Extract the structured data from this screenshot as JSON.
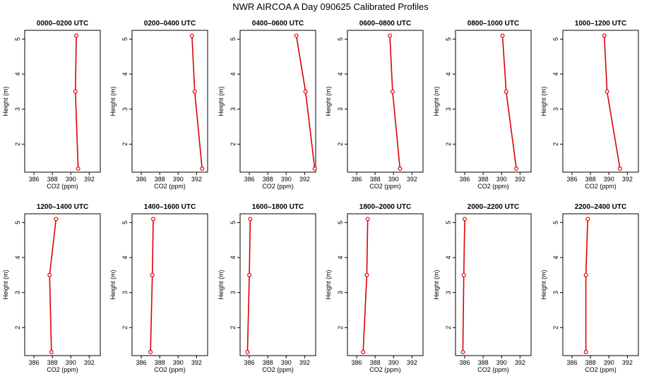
{
  "figure_title": "NWR AIRCOA A  Day 090625  Calibrated Profiles",
  "colors": {
    "profile": "#e00000",
    "axes": "#000000",
    "background": "#ffffff"
  },
  "chart_data": [
    {
      "type": "line",
      "title": "0000–0200 UTC",
      "xlabel": "CO2 (ppm)",
      "ylabel": "Height (m)",
      "xlim": [
        385,
        393.2
      ],
      "ylim": [
        1.2,
        5.25
      ],
      "xticks": [
        386,
        388,
        390,
        392
      ],
      "yticks": [
        2,
        3,
        4,
        5
      ],
      "x": [
        390.8,
        390.5,
        390.6
      ],
      "y": [
        1.3,
        3.5,
        5.1
      ]
    },
    {
      "type": "line",
      "title": "0200–0400 UTC",
      "xlabel": "CO2 (ppm)",
      "ylabel": "Height (m)",
      "xlim": [
        385,
        393.2
      ],
      "ylim": [
        1.2,
        5.25
      ],
      "xticks": [
        386,
        388,
        390,
        392
      ],
      "yticks": [
        2,
        3,
        4,
        5
      ],
      "x": [
        392.6,
        391.8,
        391.5
      ],
      "y": [
        1.3,
        3.5,
        5.1
      ]
    },
    {
      "type": "line",
      "title": "0400–0600 UTC",
      "xlabel": "CO2 (ppm)",
      "ylabel": "Height (m)",
      "xlim": [
        385,
        393.2
      ],
      "ylim": [
        1.2,
        5.25
      ],
      "xticks": [
        386,
        388,
        390,
        392
      ],
      "yticks": [
        2,
        3,
        4,
        5
      ],
      "x": [
        393.1,
        392.1,
        391.1
      ],
      "y": [
        1.3,
        3.5,
        5.1
      ]
    },
    {
      "type": "line",
      "title": "0600–0800 UTC",
      "xlabel": "CO2 (ppm)",
      "ylabel": "Height (m)",
      "xlim": [
        385,
        393.2
      ],
      "ylim": [
        1.2,
        5.25
      ],
      "xticks": [
        386,
        388,
        390,
        392
      ],
      "yticks": [
        2,
        3,
        4,
        5
      ],
      "x": [
        390.7,
        389.9,
        389.6
      ],
      "y": [
        1.3,
        3.5,
        5.1
      ]
    },
    {
      "type": "line",
      "title": "0800–1000 UTC",
      "xlabel": "CO2 (ppm)",
      "ylabel": "Height (m)",
      "xlim": [
        385,
        393.2
      ],
      "ylim": [
        1.2,
        5.25
      ],
      "xticks": [
        386,
        388,
        390,
        392
      ],
      "yticks": [
        2,
        3,
        4,
        5
      ],
      "x": [
        391.6,
        390.5,
        390.1
      ],
      "y": [
        1.3,
        3.5,
        5.1
      ]
    },
    {
      "type": "line",
      "title": "1000–1200 UTC",
      "xlabel": "CO2 (ppm)",
      "ylabel": "Height (m)",
      "xlim": [
        385,
        393.2
      ],
      "ylim": [
        1.2,
        5.25
      ],
      "xticks": [
        386,
        388,
        390,
        392
      ],
      "yticks": [
        2,
        3,
        4,
        5
      ],
      "x": [
        391.2,
        389.8,
        389.5
      ],
      "y": [
        1.3,
        3.5,
        5.1
      ]
    },
    {
      "type": "line",
      "title": "1200–1400 UTC",
      "xlabel": "CO2 (ppm)",
      "ylabel": "Height (m)",
      "xlim": [
        385,
        393.2
      ],
      "ylim": [
        1.2,
        5.25
      ],
      "xticks": [
        386,
        388,
        390,
        392
      ],
      "yticks": [
        2,
        3,
        4,
        5
      ],
      "x": [
        387.9,
        387.7,
        388.4
      ],
      "y": [
        1.3,
        3.5,
        5.1
      ]
    },
    {
      "type": "line",
      "title": "1400–1600 UTC",
      "xlabel": "CO2 (ppm)",
      "ylabel": "Height (m)",
      "xlim": [
        385,
        393.2
      ],
      "ylim": [
        1.2,
        5.25
      ],
      "xticks": [
        386,
        388,
        390,
        392
      ],
      "yticks": [
        2,
        3,
        4,
        5
      ],
      "x": [
        387.0,
        387.2,
        387.3
      ],
      "y": [
        1.3,
        3.5,
        5.1
      ]
    },
    {
      "type": "line",
      "title": "1600–1800 UTC",
      "xlabel": "CO2 (ppm)",
      "ylabel": "Height (m)",
      "xlim": [
        385,
        393.2
      ],
      "ylim": [
        1.2,
        5.25
      ],
      "xticks": [
        386,
        388,
        390,
        392
      ],
      "yticks": [
        2,
        3,
        4,
        5
      ],
      "x": [
        385.8,
        386.0,
        386.1
      ],
      "y": [
        1.3,
        3.5,
        5.1
      ]
    },
    {
      "type": "line",
      "title": "1800–2000 UTC",
      "xlabel": "CO2 (ppm)",
      "ylabel": "Height (m)",
      "xlim": [
        385,
        393.2
      ],
      "ylim": [
        1.2,
        5.25
      ],
      "xticks": [
        386,
        388,
        390,
        392
      ],
      "yticks": [
        2,
        3,
        4,
        5
      ],
      "x": [
        386.7,
        387.1,
        387.2
      ],
      "y": [
        1.3,
        3.5,
        5.1
      ]
    },
    {
      "type": "line",
      "title": "2000–2200 UTC",
      "xlabel": "CO2 (ppm)",
      "ylabel": "Height (m)",
      "xlim": [
        385,
        393.2
      ],
      "ylim": [
        1.2,
        5.25
      ],
      "xticks": [
        386,
        388,
        390,
        392
      ],
      "yticks": [
        2,
        3,
        4,
        5
      ],
      "x": [
        385.8,
        385.9,
        386.0
      ],
      "y": [
        1.3,
        3.5,
        5.1
      ]
    },
    {
      "type": "line",
      "title": "2200–2400 UTC",
      "xlabel": "CO2 (ppm)",
      "ylabel": "Height (m)",
      "xlim": [
        385,
        393.2
      ],
      "ylim": [
        1.2,
        5.25
      ],
      "xticks": [
        386,
        388,
        390,
        392
      ],
      "yticks": [
        2,
        3,
        4,
        5
      ],
      "x": [
        387.5,
        387.5,
        387.7
      ],
      "y": [
        1.3,
        3.5,
        5.1
      ]
    }
  ]
}
